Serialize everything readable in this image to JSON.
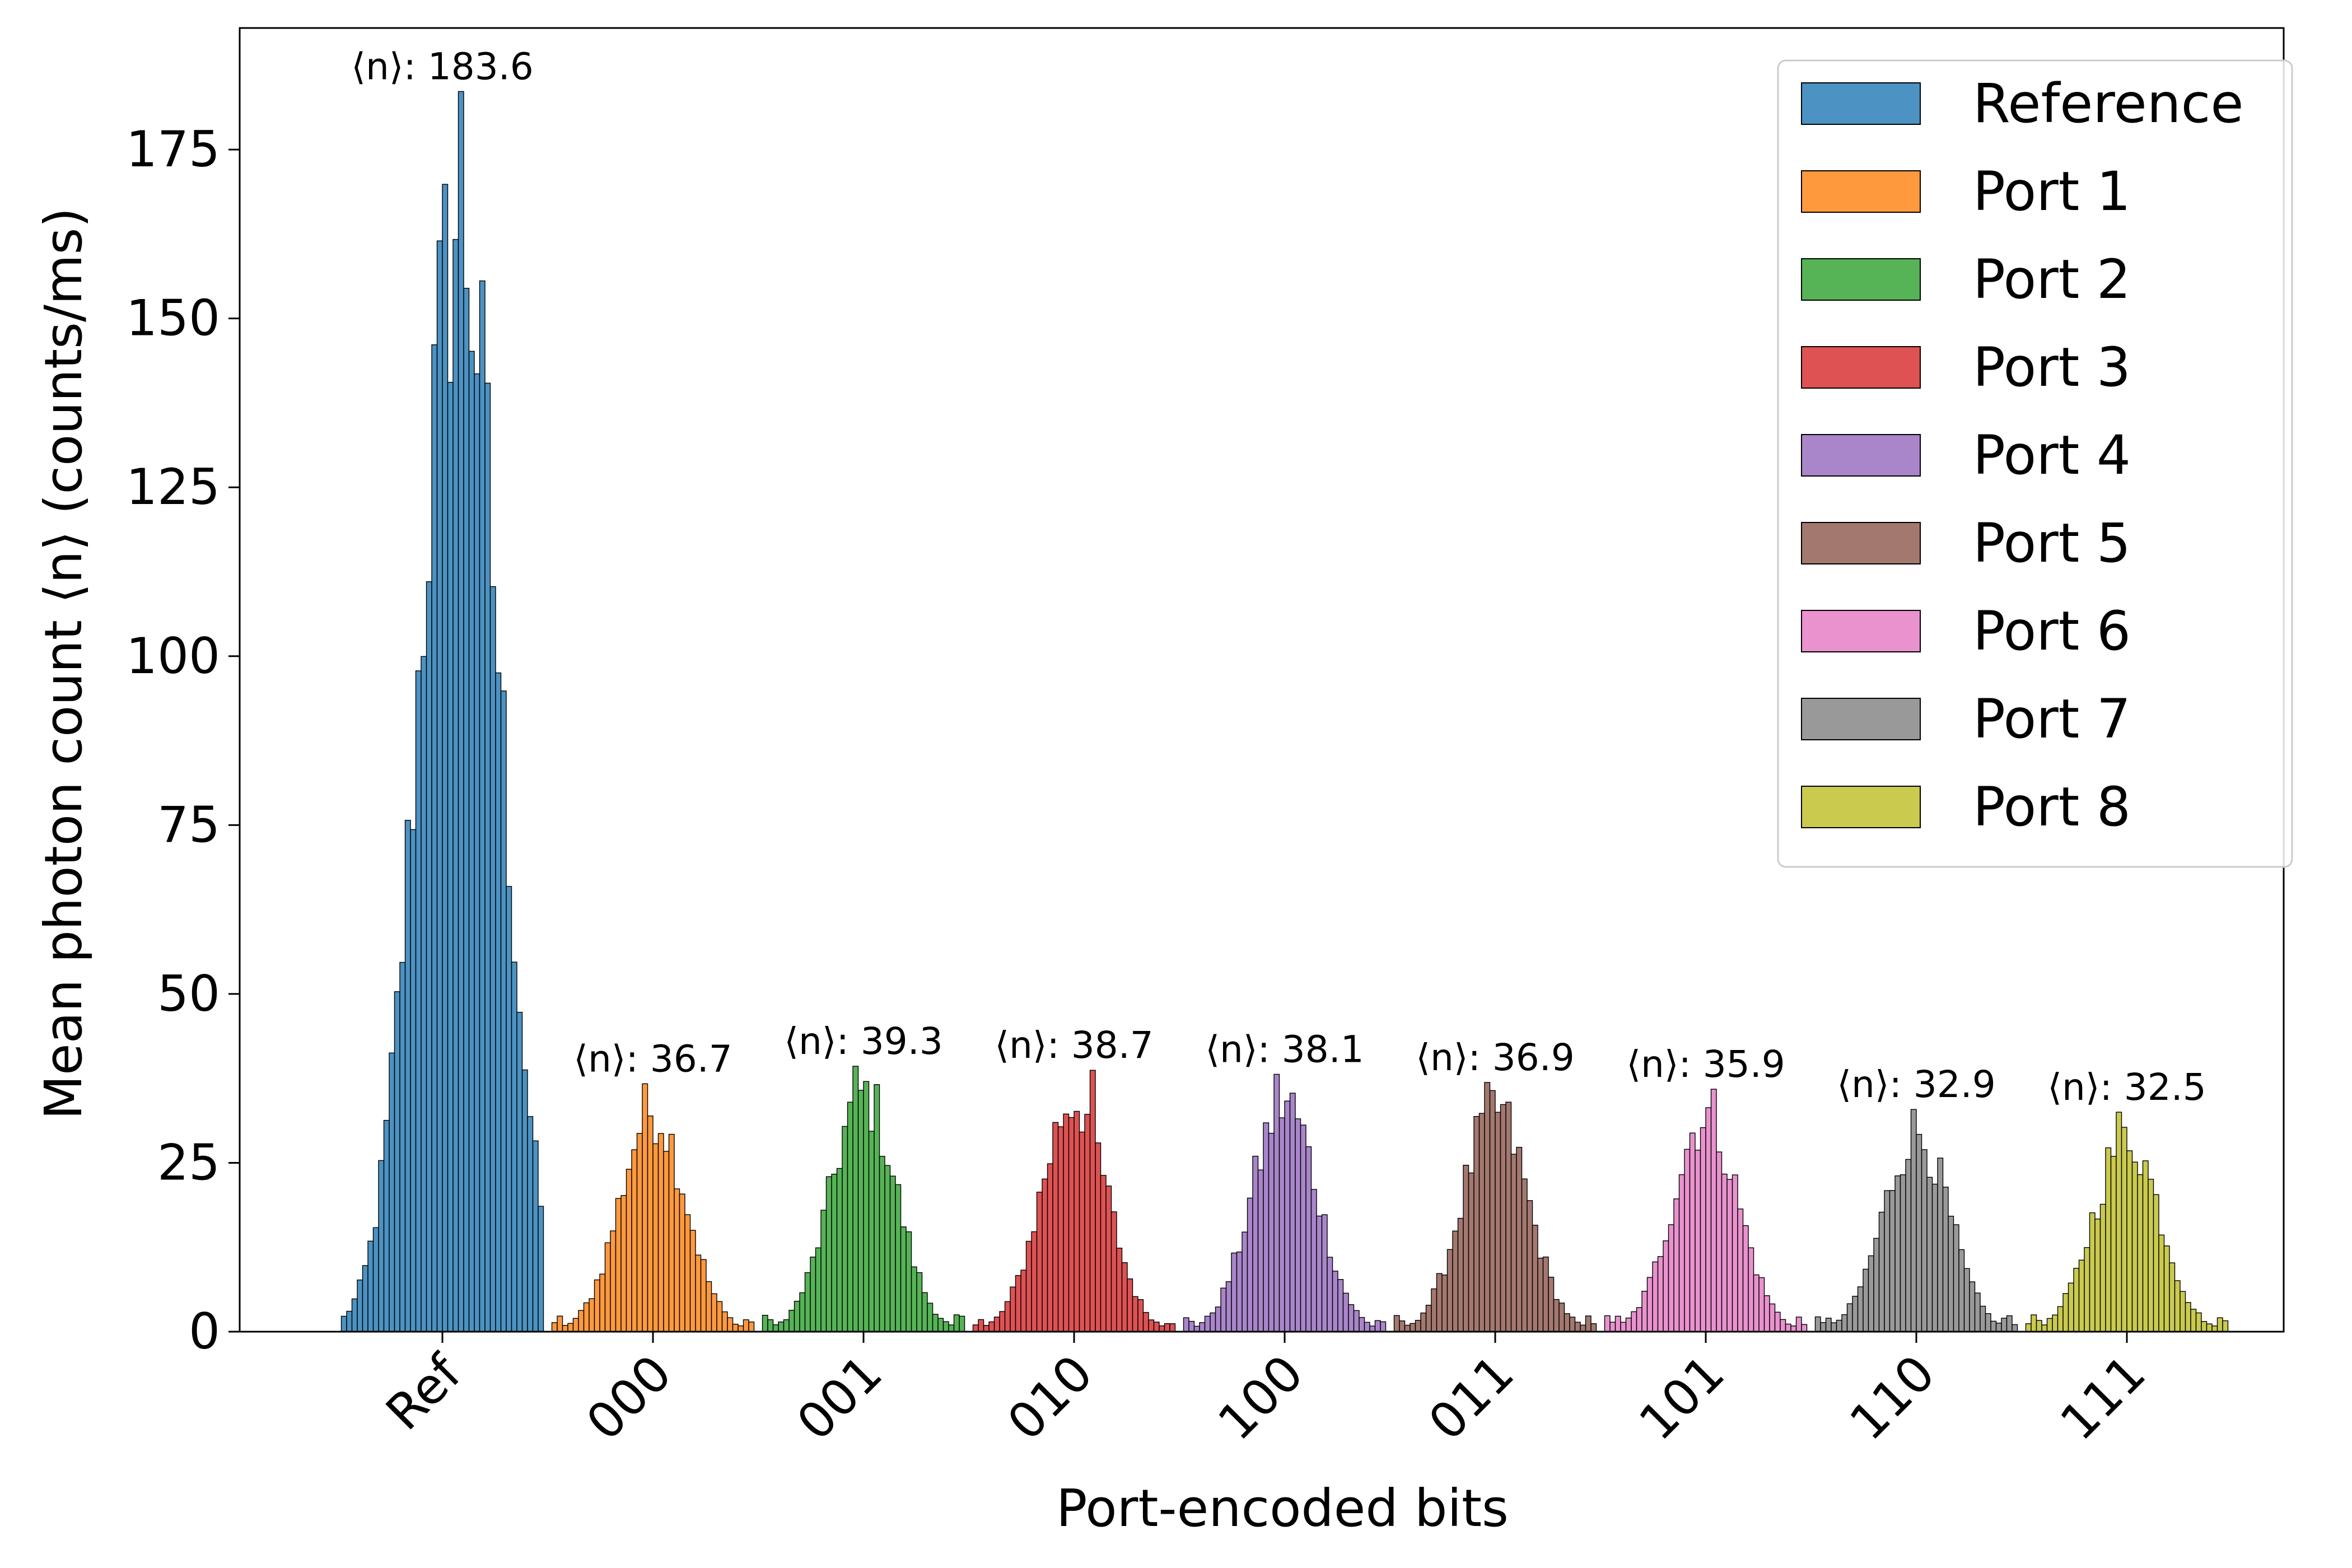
{
  "chart_data": {
    "type": "bar",
    "title": "",
    "xlabel": "Port-encoded bits",
    "ylabel": "Mean photon count ⟨n⟩ (counts/ms)",
    "ylim": [
      0,
      193
    ],
    "yticks": [
      0,
      25,
      50,
      75,
      100,
      125,
      150,
      175
    ],
    "xticks": [
      {
        "label": "Ref",
        "x": 0
      },
      {
        "label": "000",
        "x": 1
      },
      {
        "label": "001",
        "x": 2
      },
      {
        "label": "010",
        "x": 3
      },
      {
        "label": "100",
        "x": 4
      },
      {
        "label": "011",
        "x": 5
      },
      {
        "label": "101",
        "x": 6
      },
      {
        "label": "110",
        "x": 7
      },
      {
        "label": "111",
        "x": 8
      }
    ],
    "grid": false,
    "legend_position": "top-right",
    "series": [
      {
        "name": "Reference",
        "color": "#1f77b4",
        "center": 0,
        "mean": 183.6,
        "sd": 26,
        "annotation": "⟨n⟩: 183.6"
      },
      {
        "name": "Port 1",
        "color": "#ff7f0e",
        "center": 1,
        "mean": 36.7,
        "sd": 16,
        "annotation": "⟨n⟩: 36.7"
      },
      {
        "name": "Port 2",
        "color": "#2ca02c",
        "center": 2,
        "mean": 39.3,
        "sd": 16,
        "annotation": "⟨n⟩: 39.3"
      },
      {
        "name": "Port 3",
        "color": "#d62728",
        "center": 3,
        "mean": 38.7,
        "sd": 16,
        "annotation": "⟨n⟩: 38.7"
      },
      {
        "name": "Port 4",
        "color": "#9467bd",
        "center": 4,
        "mean": 38.1,
        "sd": 16,
        "annotation": "⟨n⟩: 38.1"
      },
      {
        "name": "Port 5",
        "color": "#8c564b",
        "center": 5,
        "mean": 36.9,
        "sd": 16,
        "annotation": "⟨n⟩: 36.9"
      },
      {
        "name": "Port 6",
        "color": "#e377c2",
        "center": 6,
        "mean": 35.9,
        "sd": 16,
        "annotation": "⟨n⟩: 35.9"
      },
      {
        "name": "Port 7",
        "color": "#7f7f7f",
        "center": 7,
        "mean": 32.9,
        "sd": 16,
        "annotation": "⟨n⟩: 32.9"
      },
      {
        "name": "Port 8",
        "color": "#bcbd22",
        "center": 8,
        "mean": 32.5,
        "sd": 16,
        "annotation": "⟨n⟩: 32.5"
      }
    ]
  }
}
